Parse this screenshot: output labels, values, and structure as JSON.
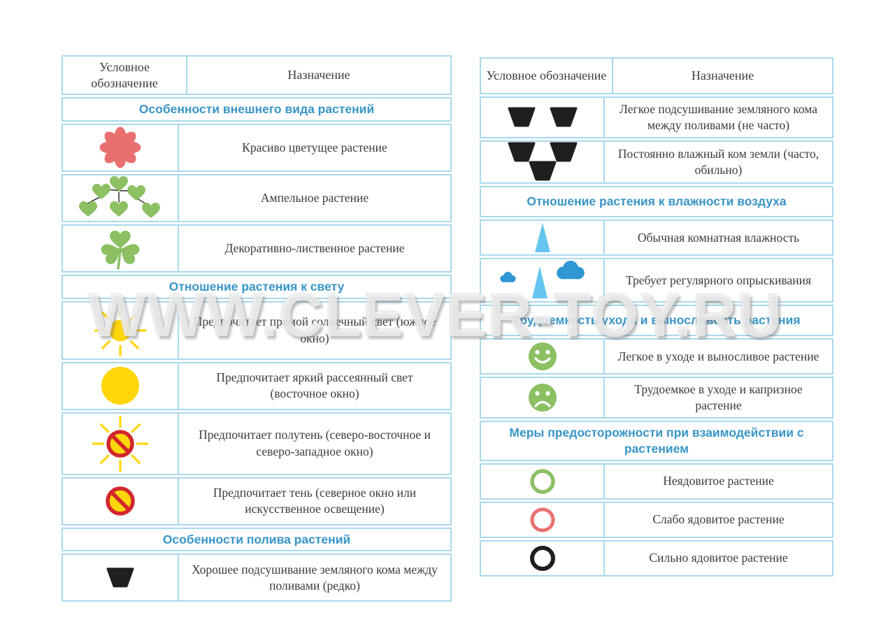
{
  "watermark": "WWW.CLEVER-TOY.RU",
  "colors": {
    "border_blue": "#A9D9EC",
    "section_blue": "#3895C7",
    "text_dark": "#3C3C3C",
    "flower_pink": "#E8716F",
    "leaf_green": "#8CC063",
    "sun_yellow": "#FFD60A",
    "forbid_red": "#D2262C",
    "triangle_blue": "#66C5F0",
    "cloud_blue": "#2F97D4",
    "icon_black": "#1F1F1F"
  },
  "tables": {
    "left": {
      "header": {
        "col1": "Условное обозначение",
        "col2": "Назначение"
      },
      "rows": [
        {
          "type": "section",
          "label": "Особенности внешнего вида растений"
        },
        {
          "type": "item",
          "icon": "flower-icon",
          "label": "Красиво цветущее растение"
        },
        {
          "type": "item",
          "icon": "hanging-plant-icon",
          "label": "Ампельное растение"
        },
        {
          "type": "item",
          "icon": "clover-icon",
          "label": "Декоративно-лиственное растение"
        },
        {
          "type": "section",
          "label": "Отношение растения к свету"
        },
        {
          "type": "item",
          "icon": "sun-icon",
          "label": "Предпочитает прямой солнечный свет (южное окно)"
        },
        {
          "type": "item",
          "icon": "yellow-circle-icon",
          "label": "Предпочитает яркий рассеянный свет (восточное окно)"
        },
        {
          "type": "item",
          "icon": "sun-crossed-icon",
          "label": "Предпочитает полутень (северо-восточное и северо-западное окно)"
        },
        {
          "type": "item",
          "icon": "no-sun-icon",
          "label": "Предпочитает тень (северное окно или искусственное освещение)"
        },
        {
          "type": "section",
          "label": "Особенности полива растений"
        },
        {
          "type": "item",
          "icon": "one-pot-icon",
          "label": "Хорошее подсушивание земляного кома между поливами (редко)"
        }
      ]
    },
    "right": {
      "header": {
        "col1": "Условное обозначение",
        "col2": "Назначение"
      },
      "rows": [
        {
          "type": "item",
          "icon": "two-pots-icon",
          "label": "Легкое подсушивание земляного кома между поливами (не часто)"
        },
        {
          "type": "item",
          "icon": "three-pots-icon",
          "label": "Постоянно влажный ком земли (часто, обильно)"
        },
        {
          "type": "section",
          "label": "Отношение растения к влажности воздуха"
        },
        {
          "type": "item",
          "icon": "humidity-triangle-icon",
          "label": "Обычная комнатная влажность"
        },
        {
          "type": "item",
          "icon": "spray-icon",
          "label": "Требует регулярного опрыскивания"
        },
        {
          "type": "section",
          "label": "Трудоемкость ухода и выносливость растения"
        },
        {
          "type": "item",
          "icon": "happy-face-icon",
          "label": "Легкое в уходе и выносливое растение"
        },
        {
          "type": "item",
          "icon": "sad-face-icon",
          "label": "Трудоемкое в уходе и капризное растение"
        },
        {
          "type": "section",
          "label": "Меры предосторожности при взаимодействии с растением"
        },
        {
          "type": "item",
          "icon": "green-ring-icon",
          "label": "Неядовитое растение"
        },
        {
          "type": "item",
          "icon": "red-ring-icon",
          "label": "Слабо ядовитое растение"
        },
        {
          "type": "item",
          "icon": "black-ring-icon",
          "label": "Сильно ядовитое растение"
        }
      ]
    }
  }
}
